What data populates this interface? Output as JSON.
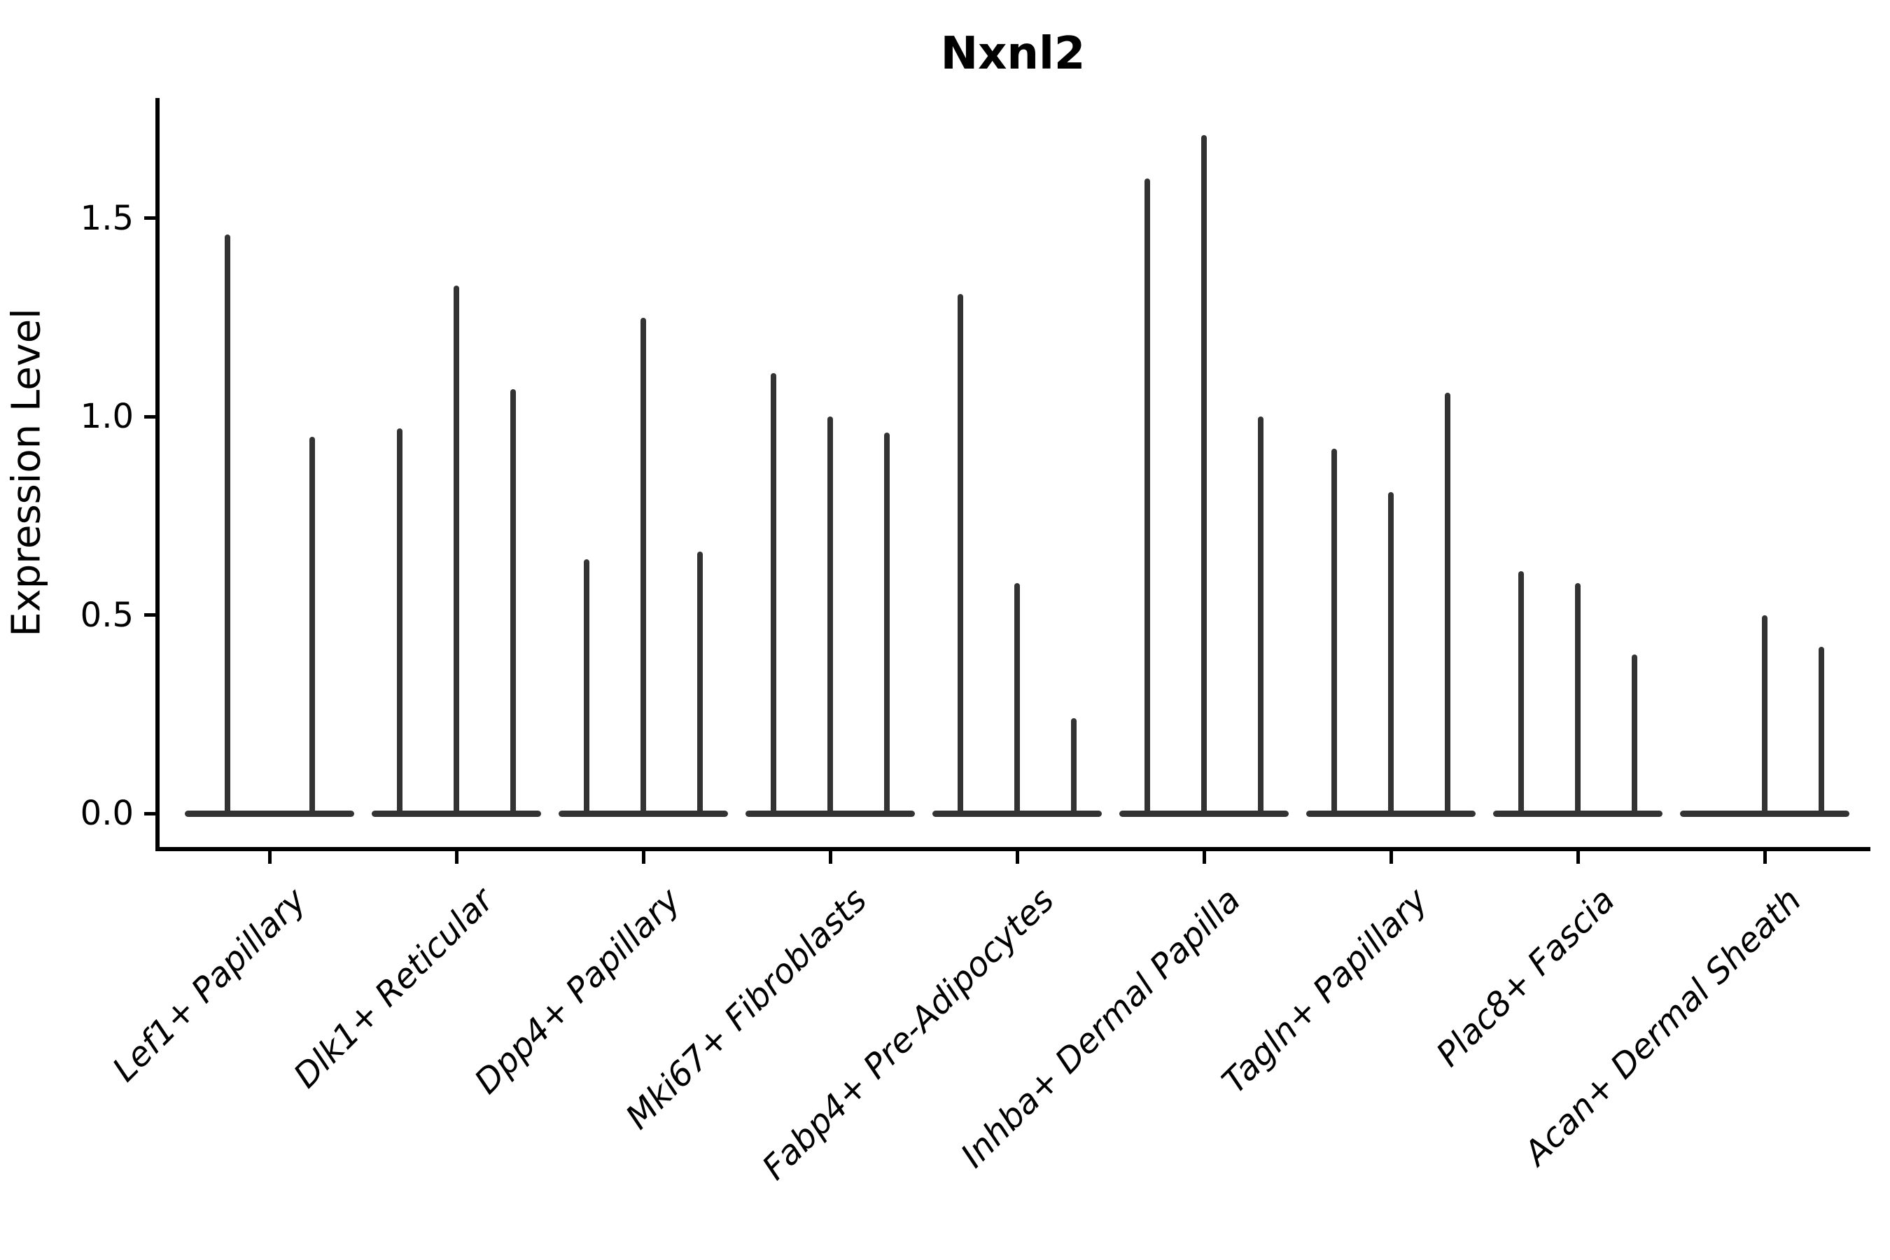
{
  "chart_data": {
    "type": "violin",
    "title": "Nxnl2",
    "ylabel": "Expression Level",
    "xlabel": "",
    "ytick_labels": [
      "0.0",
      "0.5",
      "1.0",
      "1.5"
    ],
    "ytick_values": [
      0.0,
      0.5,
      1.0,
      1.5
    ],
    "ylim": [
      0,
      1.8
    ],
    "grid": false,
    "legend": "none",
    "orientation": "vertical",
    "description": "Single-cell expression violin plot; each category shows 2-3 extremely thin violins (mass at 0 with a narrow tail up to the max expression value)",
    "categories": [
      "Lef1+ Papillary",
      "Dlk1+ Reticular",
      "Dpp4+ Papillary",
      "Mki67+ Fibroblasts",
      "Fabp4+ Pre-Adipocytes",
      "Inhba+ Dermal Papilla",
      "Tagln+ Papillary",
      "Plac8+ Fascia",
      "Acan+ Dermal Sheath"
    ],
    "violins": [
      {
        "category": "Lef1+ Papillary",
        "spike_max_values": [
          1.46,
          0.95
        ]
      },
      {
        "category": "Dlk1+ Reticular",
        "spike_max_values": [
          0.97,
          1.33,
          1.07
        ]
      },
      {
        "category": "Dpp4+ Papillary",
        "spike_max_values": [
          0.64,
          1.25,
          0.66
        ]
      },
      {
        "category": "Mki67+ Fibroblasts",
        "spike_max_values": [
          1.11,
          1.0,
          0.96
        ]
      },
      {
        "category": "Fabp4+ Pre-Adipocytes",
        "spike_max_values": [
          1.31,
          0.58,
          0.24
        ]
      },
      {
        "category": "Inhba+ Dermal Papilla",
        "spike_max_values": [
          1.6,
          1.71,
          1.0
        ]
      },
      {
        "category": "Tagln+ Papillary",
        "spike_max_values": [
          0.92,
          0.81,
          1.06
        ]
      },
      {
        "category": "Plac8+ Fascia",
        "spike_max_values": [
          0.61,
          0.58,
          0.4
        ]
      },
      {
        "category": "Acan+ Dermal Sheath",
        "spike_max_values": [
          0.0,
          0.5,
          0.42
        ]
      }
    ],
    "colors": {
      "violin": "#333333",
      "axis": "#000000",
      "text": "#000000",
      "background": "#ffffff"
    }
  }
}
